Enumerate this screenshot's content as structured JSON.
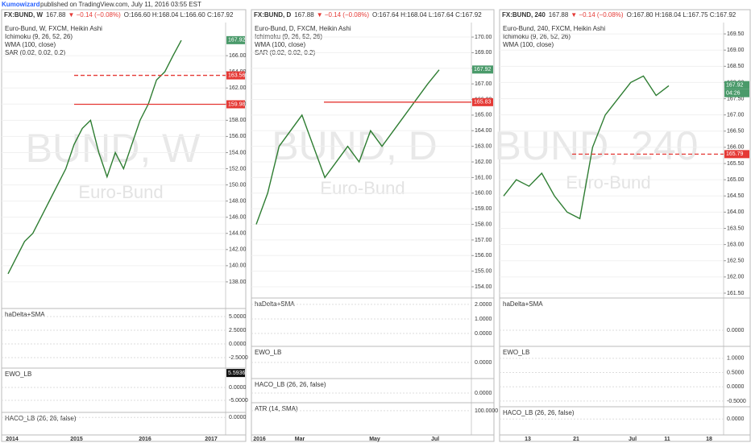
{
  "header": {
    "author": "Kumowizard",
    "published": "published on TradingView.com, July 11, 2016 03:55 EST"
  },
  "panels": [
    {
      "symbol": "FX:BUND, W",
      "last": "167.88",
      "change": "▼ −0.14 (−0.08%)",
      "ohlc": "O:166.60 H:168.04 L:166.60 C:167.92",
      "studies": [
        "Euro-Bund, W, FXCM, Heikin Ashi",
        "Ichimoku (9, 26, 52, 26)",
        "WMA (100, close)",
        "SAR (0.02, 0.02, 0.2)"
      ],
      "watermark": "BUND, W",
      "watermark_sub": "Euro-Bund",
      "ylim": [
        135,
        170.1
      ],
      "yticks": [
        {
          "value": 138,
          "label": "138.00"
        },
        {
          "value": 140,
          "label": "140.00"
        },
        {
          "value": 142,
          "label": "142.00"
        },
        {
          "value": 144,
          "label": "144.00"
        },
        {
          "value": 146,
          "label": "146.00"
        },
        {
          "value": 148,
          "label": "148.00"
        },
        {
          "value": 150,
          "label": "150.00"
        },
        {
          "value": 152,
          "label": "152.00"
        },
        {
          "value": 154,
          "label": "154.00"
        },
        {
          "value": 156,
          "label": "156.00"
        },
        {
          "value": 158,
          "label": "158.00"
        },
        {
          "value": 160,
          "label": "160.00"
        },
        {
          "value": 162,
          "label": "162.00"
        },
        {
          "value": 164,
          "label": "164.00"
        },
        {
          "value": 166,
          "label": "166.00"
        }
      ],
      "closes": [
        139,
        141,
        143,
        144,
        146,
        148,
        150,
        152,
        155,
        157,
        158,
        154,
        151,
        154,
        152,
        155,
        158,
        160,
        163,
        164,
        166,
        167.9
      ],
      "levels": [
        {
          "value": 167.92,
          "color": "#4a9a6a",
          "style": "none"
        },
        {
          "value": 163.56,
          "color": "#e53935",
          "style": "dashed"
        },
        {
          "value": 159.98,
          "color": "#e53935",
          "style": "solid"
        }
      ],
      "subpanes": [
        {
          "name": "haDelta+SMA",
          "ylim": [
            -4.12,
            6.47
          ],
          "yticks": [
            {
              "value": 5,
              "label": "5.0000"
            },
            {
              "value": 2.5,
              "label": "2.5000"
            },
            {
              "value": 0,
              "label": "0.0000"
            },
            {
              "value": -2.5,
              "label": "-2.5000"
            }
          ]
        },
        {
          "name": "EWO_LB",
          "ylim": [
            -9.69,
            7.5
          ],
          "yticks": [
            {
              "value": 0,
              "label": "0.0000"
            },
            {
              "value": -5,
              "label": "-5.0000"
            }
          ],
          "last": 5.5936
        },
        {
          "name": "HACO_LB (26, 26, false)",
          "ylim": [
            -3.5,
            1
          ],
          "yticks": [
            {
              "value": 0,
              "label": "0.0000"
            }
          ]
        }
      ],
      "xticks": [
        "2014",
        "2015",
        "2016",
        "2017"
      ]
    },
    {
      "symbol": "FX:BUND, D",
      "last": "167.88",
      "change": "▼ −0.14 (−0.08%)",
      "ohlc": "O:167.64 H:168.04 L:167.64 C:167.92",
      "studies": [
        "Euro-Bund, D, FXCM, Heikin Ashi",
        "Ichimoku (9, 26, 52, 26)",
        "WMA (100, close)",
        "SAR (0.02, 0.02, 0.2)"
      ],
      "watermark": "BUND, D",
      "watermark_sub": "Euro-Bund",
      "ylim": [
        153.28,
        170.93
      ],
      "yticks": [
        {
          "value": 154,
          "label": "154.00"
        },
        {
          "value": 155,
          "label": "155.00"
        },
        {
          "value": 156,
          "label": "156.00"
        },
        {
          "value": 157,
          "label": "157.00"
        },
        {
          "value": 158,
          "label": "158.00"
        },
        {
          "value": 159,
          "label": "159.00"
        },
        {
          "value": 160,
          "label": "160.00"
        },
        {
          "value": 161,
          "label": "161.00"
        },
        {
          "value": 162,
          "label": "162.00"
        },
        {
          "value": 163,
          "label": "163.00"
        },
        {
          "value": 164,
          "label": "164.00"
        },
        {
          "value": 165,
          "label": "165.00"
        },
        {
          "value": 166,
          "label": "166.00"
        },
        {
          "value": 167,
          "label": "167.00"
        },
        {
          "value": 168,
          "label": "168.00"
        },
        {
          "value": 169,
          "label": "169.00"
        },
        {
          "value": 170,
          "label": "170.00"
        }
      ],
      "closes": [
        158,
        160,
        163,
        164,
        165,
        163,
        161,
        162,
        163,
        162,
        164,
        163,
        164,
        165,
        166,
        167,
        167.9
      ],
      "levels": [
        {
          "value": 167.92,
          "color": "#4a9a6a",
          "style": "none"
        },
        {
          "value": 165.83,
          "color": "#e53935",
          "style": "solid"
        }
      ],
      "subpanes": [
        {
          "name": "haDelta+SMA",
          "ylim": [
            -0.89,
            2.44
          ],
          "yticks": [
            {
              "value": 2,
              "label": "2.0000"
            },
            {
              "value": 1,
              "label": "1.0000"
            },
            {
              "value": 0,
              "label": "0.0000"
            }
          ]
        },
        {
          "name": "EWO_LB",
          "ylim": [
            -1,
            1
          ],
          "yticks": [
            {
              "value": 0,
              "label": "0.0000"
            }
          ]
        },
        {
          "name": "HACO_LB (26, 26, false)",
          "ylim": [
            -1,
            1.5
          ],
          "yticks": [
            {
              "value": 0,
              "label": "0.0000"
            }
          ]
        },
        {
          "name": "ATR (14, SMA)",
          "ylim": [
            0,
            133
          ],
          "yticks": [
            {
              "value": 100,
              "label": "100.0000"
            }
          ]
        }
      ],
      "xticks": [
        "2016",
        "Mar",
        "May",
        "Jul"
      ]
    },
    {
      "symbol": "FX:BUND, 240",
      "last": "167.88",
      "change": "▼ −0.14 (−0.08%)",
      "ohlc": "O:167.80 H:168.04 L:167.75 C:167.92",
      "studies": [
        "Euro-Bund, 240, FXCM, Heikin Ashi",
        "Ichimoku (9, 26, 52, 26)",
        "WMA (100, close)"
      ],
      "watermark": "BUND, 240",
      "watermark_sub": "Euro-Bund",
      "ylim": [
        161.35,
        169.85
      ],
      "yticks": [
        {
          "value": 161.5,
          "label": "161.50"
        },
        {
          "value": 162,
          "label": "162.00"
        },
        {
          "value": 162.5,
          "label": "162.50"
        },
        {
          "value": 163,
          "label": "163.00"
        },
        {
          "value": 163.5,
          "label": "163.50"
        },
        {
          "value": 164,
          "label": "164.00"
        },
        {
          "value": 164.5,
          "label": "164.50"
        },
        {
          "value": 165,
          "label": "165.00"
        },
        {
          "value": 165.5,
          "label": "165.50"
        },
        {
          "value": 166,
          "label": "166.00"
        },
        {
          "value": 166.5,
          "label": "166.50"
        },
        {
          "value": 167,
          "label": "167.00"
        },
        {
          "value": 167.5,
          "label": "167.50"
        },
        {
          "value": 168,
          "label": "168.00"
        },
        {
          "value": 168.5,
          "label": "168.50"
        },
        {
          "value": 169,
          "label": "169.00"
        },
        {
          "value": 169.5,
          "label": "169.50"
        }
      ],
      "closes": [
        164.5,
        165,
        164.8,
        165.2,
        164.5,
        164,
        163.8,
        166,
        167,
        167.5,
        168,
        168.2,
        167.6,
        167.9
      ],
      "levels": [
        {
          "value": 167.92,
          "color": "#4a9a6a",
          "style": "none"
        },
        {
          "value": 165.79,
          "color": "#e53935",
          "style": "dashed"
        }
      ],
      "countdown": "04:26",
      "subpanes": [
        {
          "name": "haDelta+SMA",
          "ylim": [
            -1,
            2
          ],
          "yticks": [
            {
              "value": 0,
              "label": "0.0000"
            }
          ]
        },
        {
          "name": "EWO_LB",
          "ylim": [
            -0.7,
            1.42
          ],
          "yticks": [
            {
              "value": 1,
              "label": "1.0000"
            },
            {
              "value": 0.5,
              "label": "0.5000"
            },
            {
              "value": 0,
              "label": "0.0000"
            },
            {
              "value": -0.5,
              "label": "-0.5000"
            }
          ]
        },
        {
          "name": "HACO_LB (26, 26, false)",
          "ylim": [
            -1.3,
            1
          ],
          "yticks": [
            {
              "value": 0,
              "label": "0.0000"
            }
          ]
        }
      ],
      "xticks": [
        "13",
        "21",
        "Jul",
        "11",
        "18"
      ]
    }
  ]
}
